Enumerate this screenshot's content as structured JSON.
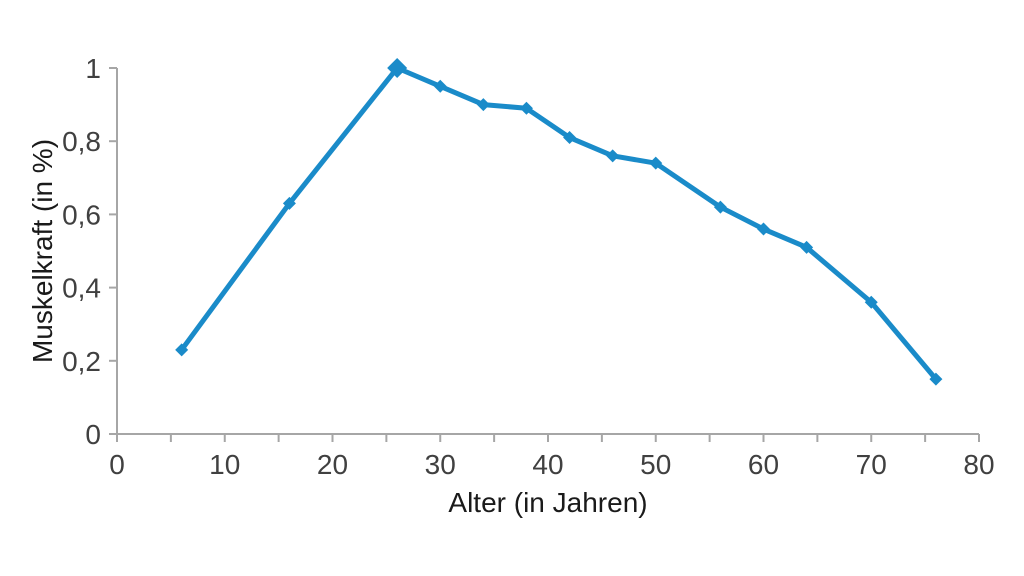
{
  "chart_data": {
    "type": "line",
    "title": "",
    "xlabel": "Alter (in Jahren)",
    "ylabel": "Muskelkraft (in %)",
    "x": [
      6,
      16,
      26,
      30,
      34,
      38,
      42,
      46,
      50,
      56,
      60,
      64,
      70,
      76
    ],
    "y": [
      0.23,
      0.63,
      1.0,
      0.95,
      0.9,
      0.89,
      0.81,
      0.76,
      0.74,
      0.62,
      0.56,
      0.51,
      0.36,
      0.15
    ],
    "xlim": [
      0,
      80
    ],
    "ylim": [
      0,
      1
    ],
    "x_major_ticks": [
      0,
      10,
      20,
      30,
      40,
      50,
      60,
      70,
      80
    ],
    "x_major_tick_labels": [
      "0",
      "10",
      "20",
      "30",
      "40",
      "50",
      "60",
      "70",
      "80"
    ],
    "x_minor_tick_step": 5,
    "y_ticks": [
      0,
      0.2,
      0.4,
      0.6,
      0.8,
      1
    ],
    "y_tick_labels": [
      "0",
      "0,2",
      "0,4",
      "0,6",
      "0,8",
      "1"
    ],
    "decimal_separator": ",",
    "grid": false,
    "legend_position": "none",
    "marker_shape": "diamond",
    "highlight_max_point": true,
    "colors": {
      "line": "#1a8bc9",
      "marker": "#1a8bc9",
      "axis": "#a6a6a6",
      "tick_label": "#404040",
      "axis_title": "#1a1a1a",
      "background": "#ffffff"
    }
  }
}
